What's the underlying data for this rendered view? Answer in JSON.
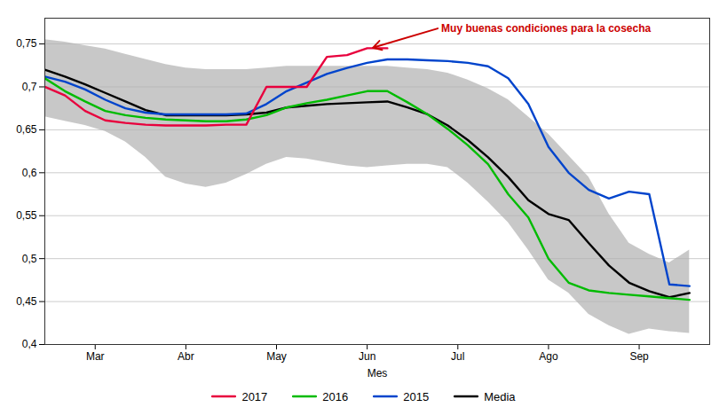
{
  "chart_data": {
    "type": "line",
    "xlabel": "Mes",
    "x": [
      0,
      1,
      2,
      3,
      4,
      5,
      6,
      7,
      8,
      9,
      10,
      11,
      12,
      13,
      14,
      15,
      16,
      17,
      18,
      19,
      20,
      21,
      22,
      23,
      24,
      25,
      26,
      27,
      28,
      29,
      30,
      31,
      32
    ],
    "xlim": [
      0,
      33
    ],
    "xticks": [
      {
        "value": 2.5,
        "label": "Mar"
      },
      {
        "value": 7,
        "label": "Abr"
      },
      {
        "value": 11.5,
        "label": "May"
      },
      {
        "value": 16,
        "label": "Jun"
      },
      {
        "value": 20.5,
        "label": "Jul"
      },
      {
        "value": 25,
        "label": "Ago"
      },
      {
        "value": 29.5,
        "label": "Sep"
      }
    ],
    "ylim": [
      0.4,
      0.78
    ],
    "yticks": [
      {
        "value": 0.4,
        "label": "0,4"
      },
      {
        "value": 0.45,
        "label": "0,45"
      },
      {
        "value": 0.5,
        "label": "0,5"
      },
      {
        "value": 0.55,
        "label": "0,55"
      },
      {
        "value": 0.6,
        "label": "0,6"
      },
      {
        "value": 0.65,
        "label": "0,65"
      },
      {
        "value": 0.7,
        "label": "0,7"
      },
      {
        "value": 0.75,
        "label": "0,75"
      }
    ],
    "grid": true,
    "legend": "bottom",
    "series": [
      {
        "name": "2017",
        "color": "#e8003d",
        "values": [
          0.7,
          0.69,
          0.672,
          0.661,
          0.658,
          0.656,
          0.655,
          0.655,
          0.655,
          0.656,
          0.656,
          0.7,
          0.7,
          0.7,
          0.735,
          0.737,
          0.745,
          0.745,
          null,
          null,
          null,
          null,
          null,
          null,
          null,
          null,
          null,
          null,
          null,
          null,
          null,
          null,
          null
        ]
      },
      {
        "name": "2016",
        "color": "#00bb00",
        "values": [
          0.71,
          0.695,
          0.683,
          0.672,
          0.667,
          0.664,
          0.662,
          0.661,
          0.66,
          0.66,
          0.662,
          0.667,
          0.676,
          0.681,
          0.685,
          0.69,
          0.695,
          0.695,
          0.682,
          0.668,
          0.651,
          0.632,
          0.61,
          0.575,
          0.548,
          0.5,
          0.472,
          0.463,
          0.46,
          0.458,
          0.456,
          0.454,
          0.452
        ]
      },
      {
        "name": "2015",
        "color": "#0044cc",
        "values": [
          0.712,
          0.706,
          0.697,
          0.685,
          0.675,
          0.67,
          0.668,
          0.668,
          0.668,
          0.668,
          0.669,
          0.68,
          0.695,
          0.705,
          0.715,
          0.722,
          0.728,
          0.732,
          0.732,
          0.731,
          0.73,
          0.728,
          0.724,
          0.71,
          0.68,
          0.63,
          0.6,
          0.58,
          0.57,
          0.578,
          0.575,
          0.47,
          0.468
        ]
      },
      {
        "name": "Media",
        "color": "#000000",
        "values": [
          0.72,
          0.712,
          0.703,
          0.693,
          0.683,
          0.673,
          0.667,
          0.667,
          0.667,
          0.667,
          0.668,
          0.67,
          0.676,
          0.678,
          0.68,
          0.681,
          0.682,
          0.683,
          0.676,
          0.668,
          0.655,
          0.638,
          0.618,
          0.595,
          0.568,
          0.552,
          0.545,
          0.518,
          0.492,
          0.472,
          0.462,
          0.455,
          0.46
        ]
      }
    ],
    "band": {
      "color": "#b0b0b0",
      "upper": [
        0.755,
        0.752,
        0.748,
        0.744,
        0.738,
        0.732,
        0.726,
        0.722,
        0.72,
        0.72,
        0.72,
        0.722,
        0.724,
        0.724,
        0.724,
        0.724,
        0.724,
        0.724,
        0.722,
        0.72,
        0.716,
        0.708,
        0.698,
        0.685,
        0.665,
        0.645,
        0.62,
        0.595,
        0.552,
        0.518,
        0.505,
        0.495,
        0.51
      ],
      "lower": [
        0.665,
        0.66,
        0.655,
        0.648,
        0.636,
        0.618,
        0.595,
        0.587,
        0.583,
        0.588,
        0.598,
        0.61,
        0.618,
        0.616,
        0.612,
        0.608,
        0.606,
        0.608,
        0.61,
        0.61,
        0.606,
        0.588,
        0.566,
        0.542,
        0.51,
        0.475,
        0.46,
        0.435,
        0.422,
        0.412,
        0.418,
        0.415,
        0.413
      ]
    },
    "annotations": [
      {
        "text": "Muy buenas condiciones para la cosecha",
        "x": 16.2,
        "y": 0.745,
        "text_x": 19.5,
        "text_y": 0.768,
        "color": "#cc0000"
      }
    ]
  }
}
